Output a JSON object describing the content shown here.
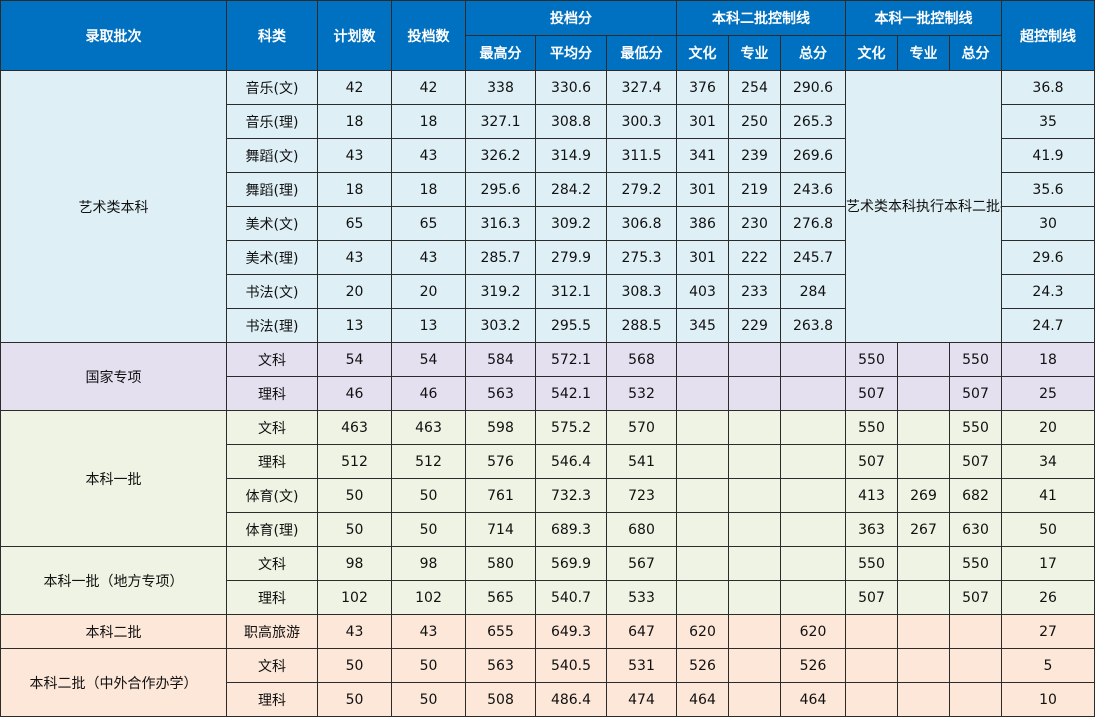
{
  "header": {
    "batch": "录取批次",
    "subject": "科类",
    "plan": "计划数",
    "filed": "投档数",
    "filing_score": "投档分",
    "filing_sub": [
      "最高分",
      "平均分",
      "最低分"
    ],
    "tier2_line": "本科二批控制线",
    "tier2_sub": [
      "文化",
      "专业",
      "总分"
    ],
    "tier1_line": "本科一批控制线",
    "tier1_sub": [
      "文化",
      "专业",
      "总分"
    ],
    "over_line": "超控制线"
  },
  "art_note": "艺术类本科执行本科二批控制线",
  "groups": [
    {
      "name": "艺术类本科",
      "rows": [
        {
          "subject": "音乐(文)",
          "plan": "42",
          "filed": "42",
          "max": "338",
          "avg": "330.6",
          "min": "327.4",
          "t2_culture": "376",
          "t2_major": "254",
          "t2_total": "290.6",
          "over": "36.8"
        },
        {
          "subject": "音乐(理)",
          "plan": "18",
          "filed": "18",
          "max": "327.1",
          "avg": "308.8",
          "min": "300.3",
          "t2_culture": "301",
          "t2_major": "250",
          "t2_total": "265.3",
          "over": "35"
        },
        {
          "subject": "舞蹈(文)",
          "plan": "43",
          "filed": "43",
          "max": "326.2",
          "avg": "314.9",
          "min": "311.5",
          "t2_culture": "341",
          "t2_major": "239",
          "t2_total": "269.6",
          "over": "41.9"
        },
        {
          "subject": "舞蹈(理)",
          "plan": "18",
          "filed": "18",
          "max": "295.6",
          "avg": "284.2",
          "min": "279.2",
          "t2_culture": "301",
          "t2_major": "219",
          "t2_total": "243.6",
          "over": "35.6"
        },
        {
          "subject": "美术(文)",
          "plan": "65",
          "filed": "65",
          "max": "316.3",
          "avg": "309.2",
          "min": "306.8",
          "t2_culture": "386",
          "t2_major": "230",
          "t2_total": "276.8",
          "over": "30"
        },
        {
          "subject": "美术(理)",
          "plan": "43",
          "filed": "43",
          "max": "285.7",
          "avg": "279.9",
          "min": "275.3",
          "t2_culture": "301",
          "t2_major": "222",
          "t2_total": "245.7",
          "over": "29.6"
        },
        {
          "subject": "书法(文)",
          "plan": "20",
          "filed": "20",
          "max": "319.2",
          "avg": "312.1",
          "min": "308.3",
          "t2_culture": "403",
          "t2_major": "233",
          "t2_total": "284",
          "over": "24.3"
        },
        {
          "subject": "书法(理)",
          "plan": "13",
          "filed": "13",
          "max": "303.2",
          "avg": "295.5",
          "min": "288.5",
          "t2_culture": "345",
          "t2_major": "229",
          "t2_total": "263.8",
          "over": "24.7"
        }
      ]
    },
    {
      "name": "国家专项",
      "rows": [
        {
          "subject": "文科",
          "plan": "54",
          "filed": "54",
          "max": "584",
          "avg": "572.1",
          "min": "568",
          "t1_culture": "550",
          "t1_major": "",
          "t1_total": "550",
          "over": "18"
        },
        {
          "subject": "理科",
          "plan": "46",
          "filed": "46",
          "max": "563",
          "avg": "542.1",
          "min": "532",
          "t1_culture": "507",
          "t1_major": "",
          "t1_total": "507",
          "over": "25"
        }
      ]
    },
    {
      "name": "本科一批",
      "rows": [
        {
          "subject": "文科",
          "plan": "463",
          "filed": "463",
          "max": "598",
          "avg": "575.2",
          "min": "570",
          "t1_culture": "550",
          "t1_major": "",
          "t1_total": "550",
          "over": "20"
        },
        {
          "subject": "理科",
          "plan": "512",
          "filed": "512",
          "max": "576",
          "avg": "546.4",
          "min": "541",
          "t1_culture": "507",
          "t1_major": "",
          "t1_total": "507",
          "over": "34"
        },
        {
          "subject": "体育(文)",
          "plan": "50",
          "filed": "50",
          "max": "761",
          "avg": "732.3",
          "min": "723",
          "t1_culture": "413",
          "t1_major": "269",
          "t1_total": "682",
          "over": "41"
        },
        {
          "subject": "体育(理)",
          "plan": "50",
          "filed": "50",
          "max": "714",
          "avg": "689.3",
          "min": "680",
          "t1_culture": "363",
          "t1_major": "267",
          "t1_total": "630",
          "over": "50"
        }
      ]
    },
    {
      "name": "本科一批（地方专项）",
      "rows": [
        {
          "subject": "文科",
          "plan": "98",
          "filed": "98",
          "max": "580",
          "avg": "569.9",
          "min": "567",
          "t1_culture": "550",
          "t1_major": "",
          "t1_total": "550",
          "over": "17"
        },
        {
          "subject": "理科",
          "plan": "102",
          "filed": "102",
          "max": "565",
          "avg": "540.7",
          "min": "533",
          "t1_culture": "507",
          "t1_major": "",
          "t1_total": "507",
          "over": "26"
        }
      ]
    },
    {
      "name": "本科二批",
      "rows": [
        {
          "subject": "职高旅游",
          "plan": "43",
          "filed": "43",
          "max": "655",
          "avg": "649.3",
          "min": "647",
          "t2_culture": "620",
          "t2_major": "",
          "t2_total": "620",
          "over": "27"
        }
      ]
    },
    {
      "name": "本科二批（中外合作办学）",
      "rows": [
        {
          "subject": "文科",
          "plan": "50",
          "filed": "50",
          "max": "563",
          "avg": "540.5",
          "min": "531",
          "t2_culture": "526",
          "t2_major": "",
          "t2_total": "526",
          "over": "5"
        },
        {
          "subject": "理科",
          "plan": "50",
          "filed": "50",
          "max": "508",
          "avg": "486.4",
          "min": "474",
          "t2_culture": "464",
          "t2_major": "",
          "t2_total": "464",
          "over": "10"
        }
      ]
    }
  ]
}
